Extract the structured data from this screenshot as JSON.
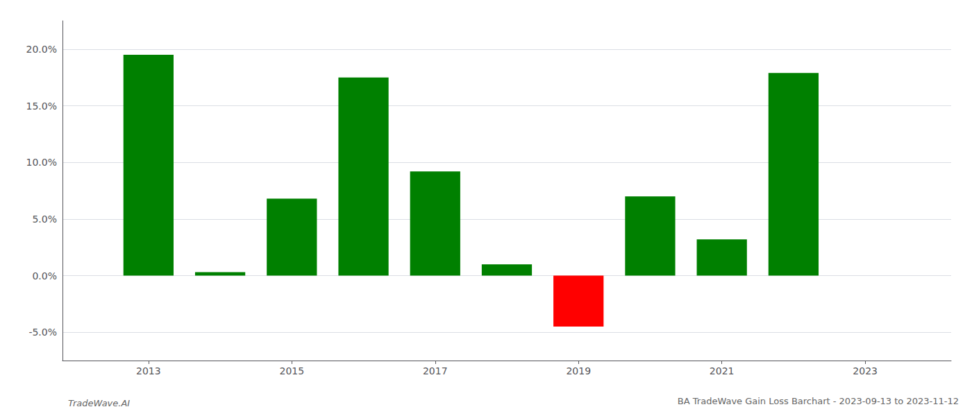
{
  "chart_data": {
    "type": "bar",
    "title": "BA TradeWave Gain Loss Barchart - 2023-09-13 to 2023-11-12",
    "annotations": [
      {
        "text": "TradeWave.AI"
      }
    ],
    "x": [
      2013,
      2014,
      2015,
      2016,
      2017,
      2018,
      2019,
      2020,
      2021,
      2022,
      2023
    ],
    "values": [
      0.195,
      0.003,
      0.068,
      0.175,
      0.092,
      0.01,
      -0.045,
      0.07,
      0.032,
      0.179,
      null
    ],
    "colors": [
      "#008000",
      "#008000",
      "#008000",
      "#008000",
      "#008000",
      "#008000",
      "#ff0000",
      "#008000",
      "#008000",
      "#008000",
      null
    ],
    "xlim": [
      2011.8,
      2024.2
    ],
    "xticks": [
      2013,
      2015,
      2017,
      2019,
      2021,
      2023
    ],
    "ylim": [
      -0.075,
      0.225
    ],
    "yticks": [
      {
        "value": -0.05,
        "label": "-5.0%"
      },
      {
        "value": 0.0,
        "label": "0.0%"
      },
      {
        "value": 0.05,
        "label": "5.0%"
      },
      {
        "value": 0.1,
        "label": "10.0%"
      },
      {
        "value": 0.15,
        "label": "15.0%"
      },
      {
        "value": 0.2,
        "label": "20.0%"
      }
    ],
    "grid": true
  }
}
